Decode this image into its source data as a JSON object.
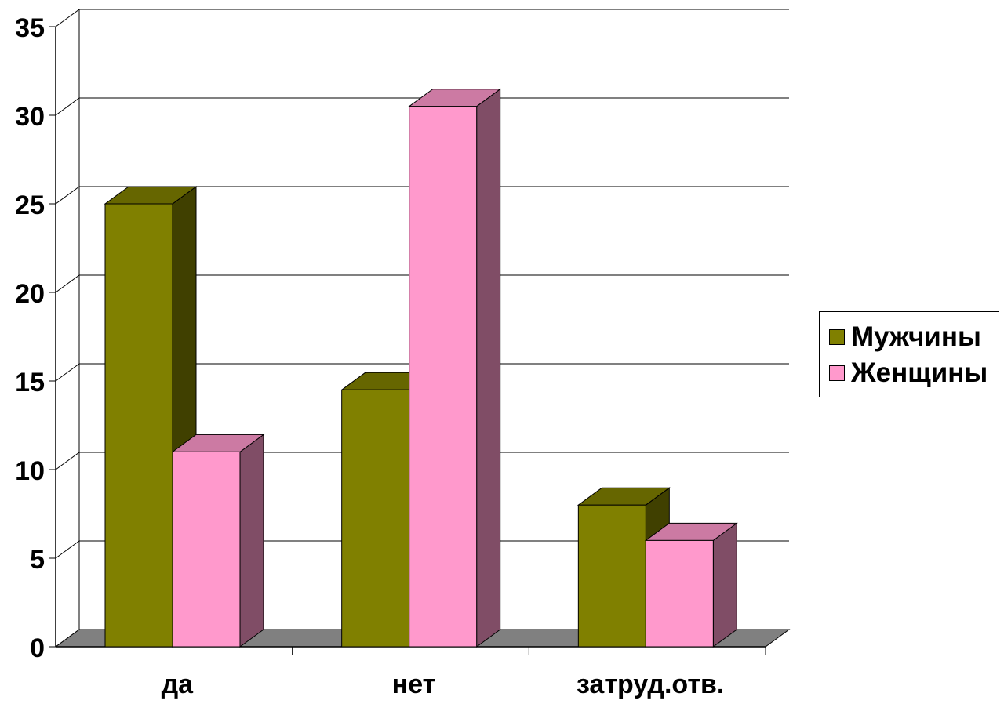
{
  "chart_data": {
    "type": "bar",
    "title": "",
    "xlabel": "",
    "ylabel": "",
    "categories": [
      "да",
      "нет",
      "затруд.отв."
    ],
    "series": [
      {
        "name": "Мужчины",
        "values": [
          25,
          14.5,
          8
        ],
        "color": "#808000"
      },
      {
        "name": "Женщины",
        "values": [
          11,
          30.5,
          6
        ],
        "color": "#FF99CC"
      }
    ],
    "ylim": [
      0,
      35
    ],
    "yticks": [
      "0",
      "5",
      "10",
      "15",
      "20",
      "25",
      "30",
      "35"
    ],
    "grid": true,
    "legend_position": "right",
    "style": "3d-clustered-column"
  }
}
